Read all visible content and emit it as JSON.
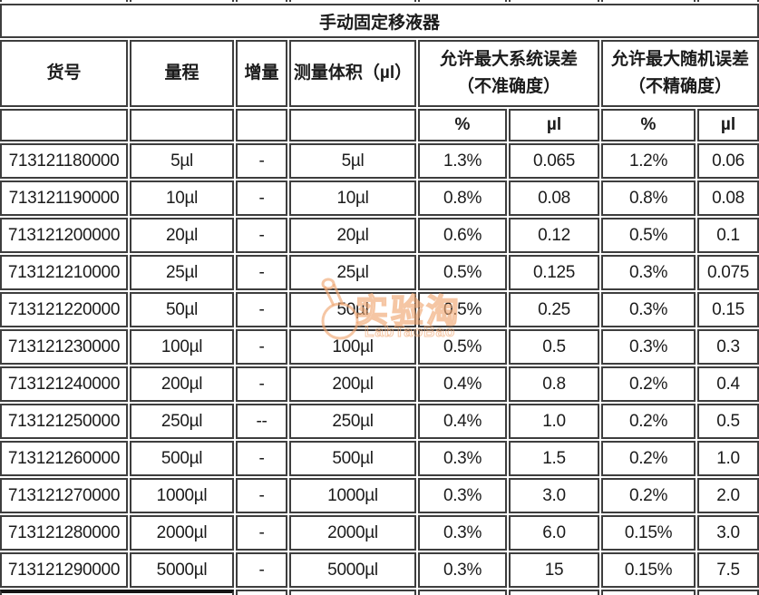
{
  "colors": {
    "border": "#3e3e3e",
    "text": "#1b1b1b",
    "bottom_bar": "#161616",
    "watermark": "rgba(240,168,115,0.65)"
  },
  "watermark": {
    "text": "实验淘",
    "subtext": "LabTaoBao"
  },
  "table": {
    "title": "手动固定移液器",
    "col_keys": [
      "item-no",
      "range",
      "increment",
      "test-volume",
      "sys-error-pct",
      "sys-error-ul",
      "rand-error-pct",
      "rand-error-ul"
    ],
    "columns": {
      "item_no": "货号",
      "range": "量程",
      "increment": "增量",
      "test_volume": "测量体积（µl）"
    },
    "group_headers": {
      "systematic": {
        "line1": "允许最大系统误差",
        "line2": "（不准确度）"
      },
      "random": {
        "line1": "允许最大随机误差",
        "line2": "（不精确度）"
      }
    },
    "subheaders": [
      "%",
      "µl",
      "%",
      "µl"
    ],
    "rows": [
      [
        "713121180000",
        "5µl",
        "-",
        "5µl",
        "1.3%",
        "0.065",
        "1.2%",
        "0.06"
      ],
      [
        "713121190000",
        "10µl",
        "-",
        "10µl",
        "0.8%",
        "0.08",
        "0.8%",
        "0.08"
      ],
      [
        "713121200000",
        "20µl",
        "-",
        "20µl",
        "0.6%",
        "0.12",
        "0.5%",
        "0.1"
      ],
      [
        "713121210000",
        "25µl",
        "-",
        "25µl",
        "0.5%",
        "0.125",
        "0.3%",
        "0.075"
      ],
      [
        "713121220000",
        "50µl",
        "-",
        "50µl",
        "0.5%",
        "0.25",
        "0.3%",
        "0.15"
      ],
      [
        "713121230000",
        "100µl",
        "-",
        "100µl",
        "0.5%",
        "0.5",
        "0.3%",
        "0.3"
      ],
      [
        "713121240000",
        "200µl",
        "-",
        "200µl",
        "0.4%",
        "0.8",
        "0.2%",
        "0.4"
      ],
      [
        "713121250000",
        "250µl",
        "--",
        "250µl",
        "0.4%",
        "1.0",
        "0.2%",
        "0.5"
      ],
      [
        "713121260000",
        "500µl",
        "-",
        "500µl",
        "0.3%",
        "1.5",
        "0.2%",
        "1.0"
      ],
      [
        "713121270000",
        "1000µl",
        "-",
        "1000µl",
        "0.3%",
        "3.0",
        "0.2%",
        "2.0"
      ],
      [
        "713121280000",
        "2000µl",
        "-",
        "2000µl",
        "0.3%",
        "6.0",
        "0.15%",
        "3.0"
      ],
      [
        "713121290000",
        "5000µl",
        "-",
        "5000µl",
        "0.3%",
        "15",
        "0.15%",
        "7.5"
      ]
    ]
  }
}
